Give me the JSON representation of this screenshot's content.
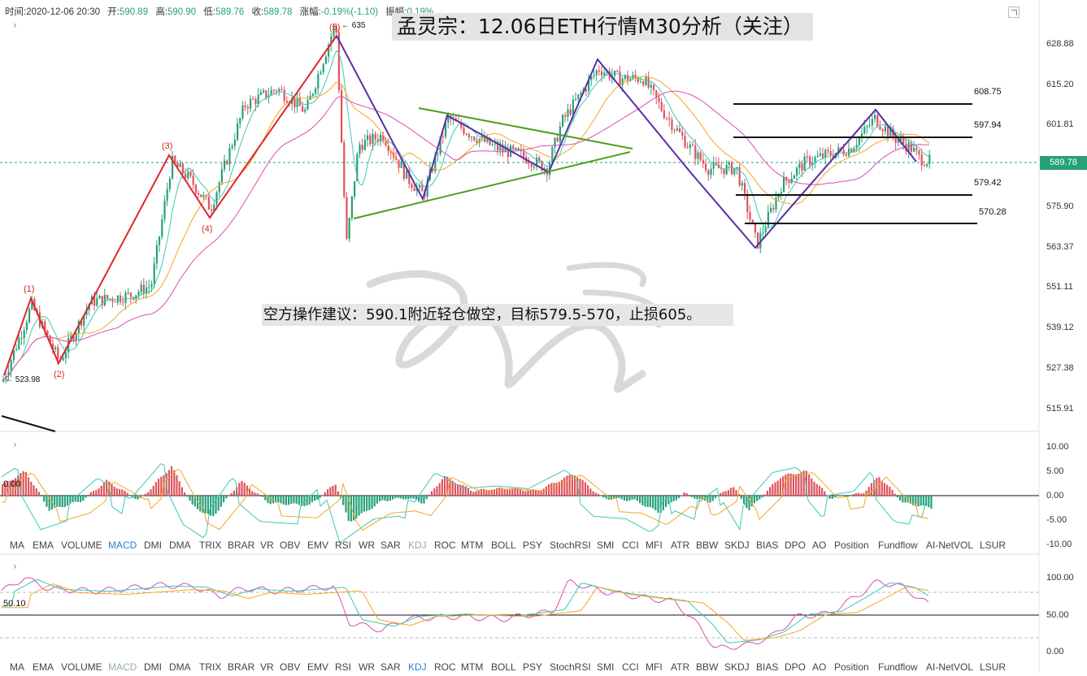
{
  "ohlc": {
    "time_label": "时间:",
    "time": "2020-12-06 20:30",
    "open_label": "开:",
    "open": "590.89",
    "high_label": "高:",
    "high": "590.90",
    "low_label": "低:",
    "low": "589.76",
    "close_label": "收:",
    "close": "589.78",
    "change_label": "涨幅:",
    "change": "-0.19%(-1.10)",
    "amp_label": "振幅:",
    "amp": "0.19%"
  },
  "title": "孟灵宗：12.06日ETH行情M30分析（关注）",
  "advice": "空方操作建议：590.1附近轻仓做空，目标579.5-570，止损605。",
  "price_axis": {
    "labels": [
      "628.88",
      "615.20",
      "601.81",
      "589.78",
      "575.90",
      "563.37",
      "551.11",
      "539.12",
      "527.38",
      "515.91"
    ],
    "current": "589.78"
  },
  "levels": {
    "l1": "608.75",
    "l2": "597.94",
    "l3": "579.42",
    "l4": "570.28"
  },
  "annotations": {
    "high": "635",
    "low": "523.98",
    "w1": "(1)",
    "w2": "(2)",
    "w3": "(3)",
    "w4": "(4)",
    "w5": "(5)"
  },
  "macd_axis": [
    "10.00",
    "5.00",
    "0.00",
    "-5.00",
    "-10.00"
  ],
  "macd_zero_label": "0.00",
  "kdj_axis": [
    "100.00",
    "50.00",
    "0.00"
  ],
  "kdj_level_label": "50.10",
  "indicator_tabs": [
    "MA",
    "EMA",
    "VOLUME",
    "MACD",
    "DMI",
    "DMA",
    "TRIX",
    "BRAR",
    "VR",
    "OBV",
    "EMV",
    "RSI",
    "WR",
    "SAR",
    "KDJ",
    "ROC",
    "MTM",
    "BOLL",
    "PSY",
    "StochRSI",
    "SMI",
    "CCI",
    "MFI",
    "ATR",
    "BBW",
    "SKDJ",
    "BIAS",
    "DPO",
    "AO",
    "Position",
    "Fundflow",
    "AI-NetVOL",
    "LSUR"
  ],
  "tabs1_active": "MACD",
  "tabs1_dim": "KDJ",
  "tabs2_active": "KDJ",
  "tabs2_dim": "MACD",
  "colors": {
    "up": "#26a17b",
    "down": "#e0525b",
    "wave_red": "#e0262b",
    "wave_purple": "#5a2ea6",
    "triangle_green": "#4aa01a",
    "ma_cyan": "#3ec8b4",
    "ma_orange": "#f5a623",
    "ma_pink": "#d64fb3",
    "watermark": "#d9d9d9"
  },
  "icons": {
    "expand": "expand-icon",
    "chevron": "chevron-right-icon"
  }
}
